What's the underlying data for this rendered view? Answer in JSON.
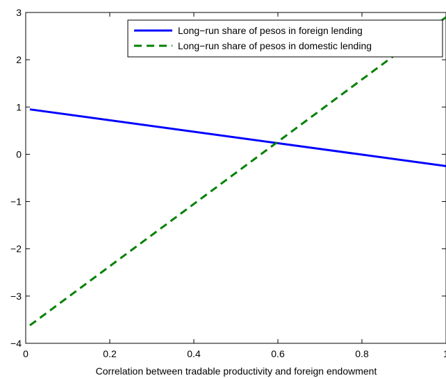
{
  "chart_data": {
    "type": "line",
    "title": "",
    "xlabel": "Correlation between tradable productivity and foreign endowment",
    "ylabel": "",
    "xlim": [
      0,
      1
    ],
    "ylim": [
      -4,
      3
    ],
    "grid": false,
    "legend_position": "top-right",
    "x_ticks": [
      0,
      0.2,
      0.4,
      0.6,
      0.8,
      1
    ],
    "x_tick_labels": [
      "0",
      "0.2",
      "0.4",
      "0.6",
      "0.8",
      "1"
    ],
    "y_ticks": [
      -4,
      -3,
      -2,
      -1,
      0,
      1,
      2,
      3
    ],
    "y_tick_labels": [
      "−4",
      "−3",
      "−2",
      "−1",
      "0",
      "1",
      "2",
      "3"
    ],
    "series": [
      {
        "name": "Long−run share of pesos in foreign lending",
        "style": "solid",
        "color": "#0000ff",
        "x": [
          0.01,
          1.0
        ],
        "y": [
          0.95,
          -0.25
        ]
      },
      {
        "name": "Long−run share of pesos in domestic lending",
        "style": "dashed",
        "color": "#008000",
        "x": [
          0.01,
          1.0
        ],
        "y": [
          -3.62,
          2.9
        ]
      }
    ]
  }
}
